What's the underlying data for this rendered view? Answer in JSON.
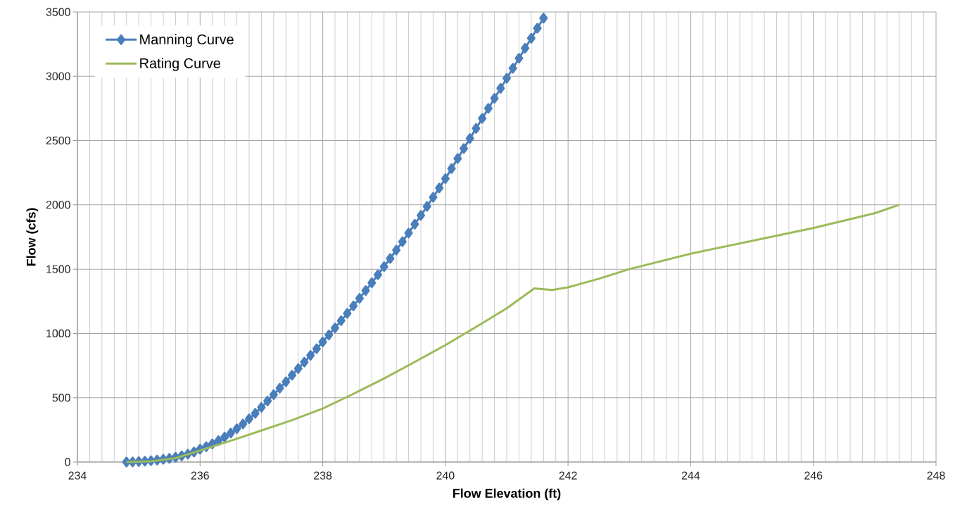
{
  "chart_data": {
    "type": "line",
    "xlabel": "Flow Elevation (ft)",
    "ylabel": "Flow (cfs)",
    "xlim": [
      234,
      248
    ],
    "xticks": [
      234,
      236,
      238,
      240,
      242,
      244,
      246,
      248
    ],
    "ylim": [
      0,
      3500
    ],
    "yticks": [
      0,
      500,
      1000,
      1500,
      2000,
      2500,
      3000,
      3500
    ],
    "grid": true,
    "legend": "top left",
    "series": [
      {
        "name": "Manning Curve",
        "color": "#4a7ebb",
        "marker": "diamond",
        "x": [
          234.8,
          234.9,
          235.0,
          235.1,
          235.2,
          235.3,
          235.4,
          235.5,
          235.6,
          235.7,
          235.8,
          235.9,
          236.0,
          236.1,
          236.2,
          236.3,
          236.4,
          236.5,
          236.6,
          236.7,
          236.8,
          236.9,
          237.0,
          237.1,
          237.2,
          237.3,
          237.4,
          237.5,
          237.6,
          237.7,
          237.8,
          237.9,
          238.0,
          238.1,
          238.2,
          238.3,
          238.4,
          238.5,
          238.6,
          238.7,
          238.8,
          238.9,
          239.0,
          239.1,
          239.2,
          239.3,
          239.4,
          239.5,
          239.6,
          239.7,
          239.8,
          239.9,
          240.0,
          240.1,
          240.2,
          240.3,
          240.4,
          240.5,
          240.6,
          240.7,
          240.8,
          240.9,
          241.0,
          241.1,
          241.2,
          241.3,
          241.4,
          241.5,
          241.6
        ],
        "values": [
          0,
          1,
          3,
          6,
          10,
          15,
          21,
          28,
          37,
          48,
          61,
          78,
          100,
          119,
          141,
          166,
          194,
          225,
          259,
          296,
          336,
          379,
          425,
          474,
          524,
          574,
          624,
          675,
          726,
          777,
          829,
          881,
          934,
          988,
          1043,
          1099,
          1156,
          1214,
          1273,
          1333,
          1394,
          1456,
          1519,
          1583,
          1648,
          1714,
          1781,
          1849,
          1918,
          1988,
          2059,
          2131,
          2204,
          2282,
          2360,
          2438,
          2516,
          2594,
          2672,
          2750,
          2828,
          2906,
          2984,
          3062,
          3140,
          3218,
          3296,
          3374,
          3452
        ]
      },
      {
        "name": "Rating Curve",
        "color": "#9bbb59",
        "marker": "none",
        "x": [
          234.8,
          235.2,
          235.6,
          236.0,
          236.5,
          237.0,
          237.5,
          238.0,
          238.5,
          239.0,
          239.5,
          240.0,
          240.5,
          241.0,
          241.45,
          241.74,
          242.0,
          242.2,
          242.5,
          243.0,
          244.0,
          245.0,
          246.0,
          247.0,
          247.4
        ],
        "values": [
          0,
          5,
          30,
          90,
          165,
          245,
          325,
          416,
          530,
          650,
          778,
          909,
          1050,
          1195,
          1350,
          1338,
          1358,
          1385,
          1425,
          1500,
          1620,
          1720,
          1820,
          1935,
          2000
        ]
      }
    ]
  }
}
